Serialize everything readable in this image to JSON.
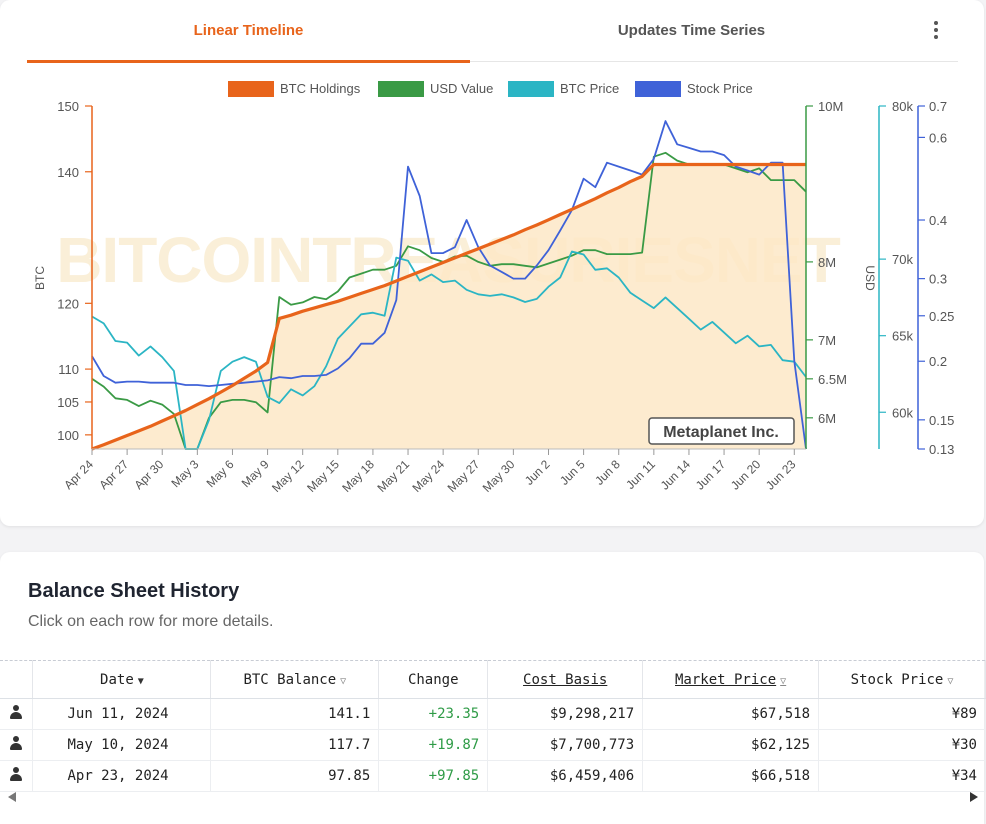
{
  "tabs": [
    {
      "label": "Linear Timeline",
      "active": true
    },
    {
      "label": "Updates Time Series",
      "active": false
    }
  ],
  "watermark": "BITCOINTREASURIESNET",
  "company_badge": "Metaplanet Inc.",
  "colors": {
    "accent": "#e8641b",
    "btc_holdings": "#e8641b",
    "usd_value": "#3a9a45",
    "btc_price": "#2bb5c4",
    "stock_price": "#3f62d8",
    "fill": "#fde8c7"
  },
  "chart_data": {
    "type": "line",
    "categories": [
      "Apr 24",
      "Apr 25",
      "Apr 26",
      "Apr 27",
      "Apr 28",
      "Apr 29",
      "Apr 30",
      "May 1",
      "May 2",
      "May 3",
      "May 4",
      "May 5",
      "May 6",
      "May 7",
      "May 8",
      "May 9",
      "May 10",
      "May 11",
      "May 12",
      "May 13",
      "May 14",
      "May 15",
      "May 16",
      "May 17",
      "May 18",
      "May 19",
      "May 20",
      "May 21",
      "May 22",
      "May 23",
      "May 24",
      "May 25",
      "May 26",
      "May 27",
      "May 28",
      "May 29",
      "May 30",
      "May 31",
      "Jun 1",
      "Jun 2",
      "Jun 3",
      "Jun 4",
      "Jun 5",
      "Jun 6",
      "Jun 7",
      "Jun 8",
      "Jun 9",
      "Jun 10",
      "Jun 11",
      "Jun 12",
      "Jun 13",
      "Jun 14",
      "Jun 15",
      "Jun 16",
      "Jun 17",
      "Jun 18",
      "Jun 19",
      "Jun 20",
      "Jun 21",
      "Jun 22",
      "Jun 23",
      "Jun 24"
    ],
    "tick_labels": [
      "Apr 24",
      "Apr 27",
      "Apr 30",
      "May 3",
      "May 6",
      "May 9",
      "May 12",
      "May 15",
      "May 18",
      "May 21",
      "May 24",
      "May 27",
      "May 30",
      "Jun 2",
      "Jun 5",
      "Jun 8",
      "Jun 11",
      "Jun 14",
      "Jun 17",
      "Jun 20",
      "Jun 23"
    ],
    "series": [
      {
        "name": "BTC Holdings",
        "axis": "btc",
        "values": [
          97.85,
          98.5,
          99.2,
          99.9,
          100.6,
          101.3,
          102.1,
          102.9,
          103.7,
          104.6,
          105.5,
          106.5,
          107.5,
          108.6,
          109.7,
          111.0,
          117.7,
          118.2,
          118.8,
          119.3,
          119.8,
          120.3,
          120.9,
          121.5,
          122.1,
          122.7,
          123.4,
          124.1,
          124.8,
          125.5,
          126.2,
          126.9,
          127.6,
          128.3,
          129.0,
          129.7,
          130.4,
          131.2,
          131.9,
          132.7,
          133.5,
          134.3,
          135.1,
          135.9,
          136.8,
          137.6,
          138.5,
          139.3,
          141.1,
          141.1,
          141.1,
          141.1,
          141.1,
          141.1,
          141.1,
          141.1,
          141.1,
          141.1,
          141.1,
          141.1,
          141.1,
          141.1
        ]
      },
      {
        "name": "USD Value",
        "axis": "usd",
        "values": [
          6.5,
          6.4,
          6.25,
          6.23,
          6.15,
          6.22,
          6.17,
          6.05,
          5.6,
          5.6,
          6.0,
          6.2,
          6.23,
          6.23,
          6.2,
          6.07,
          7.55,
          7.45,
          7.48,
          7.55,
          7.52,
          7.62,
          7.8,
          7.85,
          7.9,
          7.9,
          7.95,
          8.2,
          8.15,
          8.05,
          8.0,
          8.07,
          8.08,
          8.0,
          7.95,
          7.97,
          7.97,
          7.95,
          7.93,
          7.98,
          8.03,
          8.08,
          8.15,
          8.15,
          8.1,
          8.1,
          8.1,
          8.12,
          9.35,
          9.4,
          9.3,
          9.25,
          9.25,
          9.25,
          9.25,
          9.2,
          9.15,
          9.2,
          9.05,
          9.05,
          9.05,
          8.9
        ]
      },
      {
        "name": "BTC Price",
        "axis": "btcprice",
        "values": [
          66250,
          65800,
          64650,
          64550,
          63700,
          64300,
          63600,
          62700,
          57600,
          57600,
          59500,
          62700,
          63300,
          63600,
          63300,
          61000,
          60600,
          61500,
          61100,
          61700,
          63000,
          64800,
          65600,
          66400,
          66500,
          66300,
          70100,
          69900,
          68600,
          69000,
          68500,
          68600,
          68000,
          67700,
          67600,
          67700,
          67500,
          67200,
          67400,
          68200,
          68800,
          70500,
          70300,
          69300,
          69400,
          68800,
          67800,
          67300,
          66800,
          67500,
          66800,
          66100,
          65400,
          65900,
          65200,
          64500,
          65000,
          64300,
          64400,
          63400,
          63300,
          62300
        ]
      },
      {
        "name": "Stock Price",
        "axis": "stock",
        "values": [
          0.205,
          0.186,
          0.18,
          0.181,
          0.181,
          0.18,
          0.18,
          0.18,
          0.178,
          0.178,
          0.177,
          0.178,
          0.179,
          0.18,
          0.181,
          0.182,
          0.185,
          0.184,
          0.186,
          0.186,
          0.187,
          0.193,
          0.203,
          0.218,
          0.218,
          0.23,
          0.27,
          0.52,
          0.45,
          0.34,
          0.34,
          0.35,
          0.4,
          0.35,
          0.32,
          0.31,
          0.3,
          0.3,
          0.32,
          0.345,
          0.38,
          0.42,
          0.49,
          0.47,
          0.53,
          0.52,
          0.51,
          0.5,
          0.54,
          0.65,
          0.58,
          0.57,
          0.56,
          0.56,
          0.55,
          0.52,
          0.51,
          0.5,
          0.53,
          0.53,
          0.2,
          0.13
        ]
      }
    ],
    "axes": {
      "btc": {
        "label": "BTC",
        "range": [
          97.85,
          150
        ],
        "ticks": [
          100,
          105,
          110,
          120,
          140,
          150
        ]
      },
      "usd": {
        "label": "USD",
        "range": [
          5.6,
          10
        ],
        "ticks": [
          6,
          6.5,
          7,
          8,
          10
        ],
        "tick_labels": [
          "6M",
          "6.5M",
          "7M",
          "8M",
          "10M"
        ]
      },
      "btcprice": {
        "label": "",
        "range": [
          57600,
          80000
        ],
        "ticks": [
          60000,
          65000,
          70000,
          80000
        ],
        "tick_labels": [
          "60k",
          "65k",
          "70k",
          "80k"
        ]
      },
      "stock": {
        "label": "",
        "scale": "log",
        "range": [
          0.13,
          0.7
        ],
        "ticks": [
          0.13,
          0.15,
          0.2,
          0.25,
          0.3,
          0.4,
          0.6,
          0.7
        ]
      }
    },
    "legend_position": "top",
    "grid": false
  },
  "sheet": {
    "title": "Balance Sheet History",
    "subtitle": "Click on each row for more details.",
    "columns": [
      "Date",
      "BTC Balance",
      "Change",
      "Cost Basis",
      "Market Price",
      "Stock Price"
    ],
    "rows": [
      {
        "date": "Jun 11, 2024",
        "balance": "141.1",
        "change": "+23.35",
        "cost": "$9,298,217",
        "market": "$67,518",
        "stock": "¥89"
      },
      {
        "date": "May 10, 2024",
        "balance": "117.7",
        "change": "+19.87",
        "cost": "$7,700,773",
        "market": "$62,125",
        "stock": "¥30"
      },
      {
        "date": "Apr 23, 2024",
        "balance": "97.85",
        "change": "+97.85",
        "cost": "$6,459,406",
        "market": "$66,518",
        "stock": "¥34"
      }
    ]
  }
}
